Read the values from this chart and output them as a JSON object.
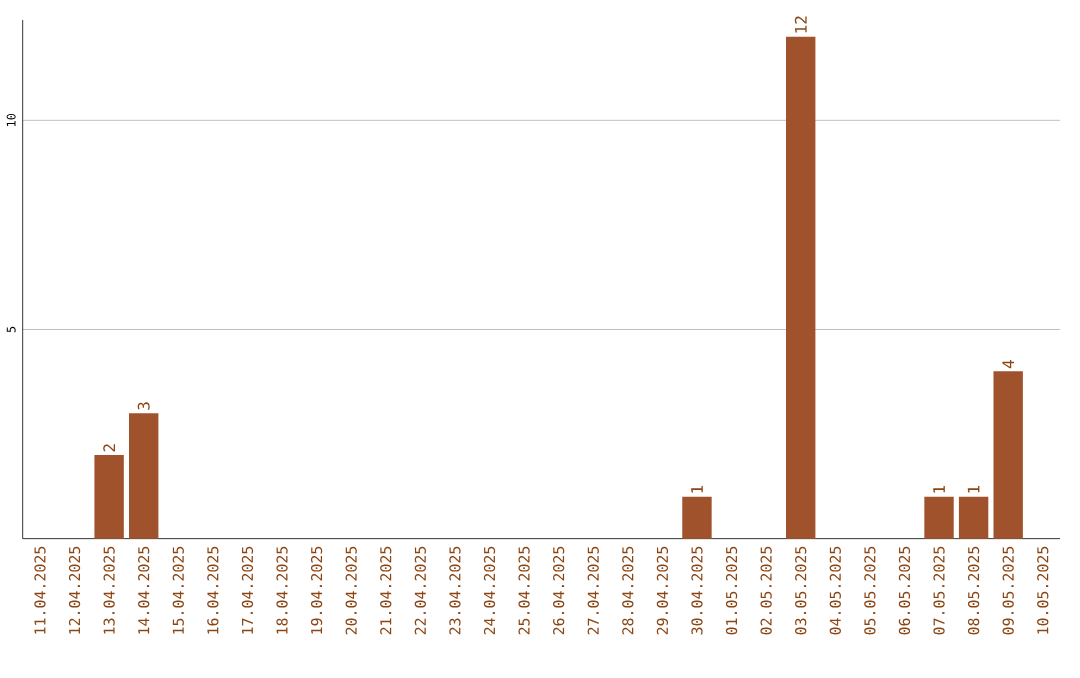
{
  "chart_data": {
    "type": "bar",
    "categories": [
      "11.04.2025",
      "12.04.2025",
      "13.04.2025",
      "14.04.2025",
      "15.04.2025",
      "16.04.2025",
      "17.04.2025",
      "18.04.2025",
      "19.04.2025",
      "20.04.2025",
      "21.04.2025",
      "22.04.2025",
      "23.04.2025",
      "24.04.2025",
      "25.04.2025",
      "26.04.2025",
      "27.04.2025",
      "28.04.2025",
      "29.04.2025",
      "30.04.2025",
      "01.05.2025",
      "02.05.2025",
      "03.05.2025",
      "04.05.2025",
      "05.05.2025",
      "06.05.2025",
      "07.05.2025",
      "08.05.2025",
      "09.05.2025",
      "10.05.2025"
    ],
    "values": [
      0,
      0,
      2,
      3,
      0,
      0,
      0,
      0,
      0,
      0,
      0,
      0,
      0,
      0,
      0,
      0,
      0,
      0,
      0,
      1,
      0,
      0,
      12,
      0,
      0,
      0,
      1,
      1,
      4,
      0
    ],
    "value_labels": [
      null,
      null,
      "2",
      "3",
      null,
      null,
      null,
      null,
      null,
      null,
      null,
      null,
      null,
      null,
      null,
      null,
      null,
      null,
      null,
      "1",
      null,
      null,
      "12",
      null,
      null,
      null,
      "1",
      "1",
      "4",
      null
    ],
    "color": "#a0522d",
    "ylim": [
      0,
      12.4
    ],
    "yticks": [
      5,
      10
    ],
    "grid": "y"
  }
}
